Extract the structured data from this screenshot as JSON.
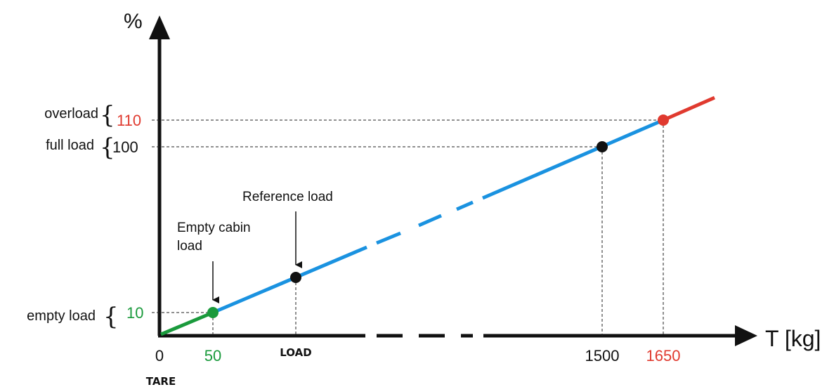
{
  "axes": {
    "y_unit": "%",
    "x_unit": "T [kg]"
  },
  "y_ticks": {
    "overload": {
      "name": "overload",
      "value": "110"
    },
    "full": {
      "name": "full load",
      "value": "100"
    },
    "empty": {
      "name": "empty load",
      "value": "10"
    }
  },
  "x_ticks": {
    "zero": "0",
    "empty": "50",
    "load": "LOAD",
    "full": "1500",
    "overload": "1650",
    "tare": "TARE"
  },
  "annotations": {
    "empty_cabin_line1": "Empty cabin",
    "empty_cabin_line2": "load",
    "reference": "Reference load"
  },
  "colors": {
    "empty_segment": "#1a9a3c",
    "normal_segment": "#1a92e0",
    "overload_segment": "#e03a2f",
    "reference_point": "#111111",
    "axis": "#111111"
  }
}
